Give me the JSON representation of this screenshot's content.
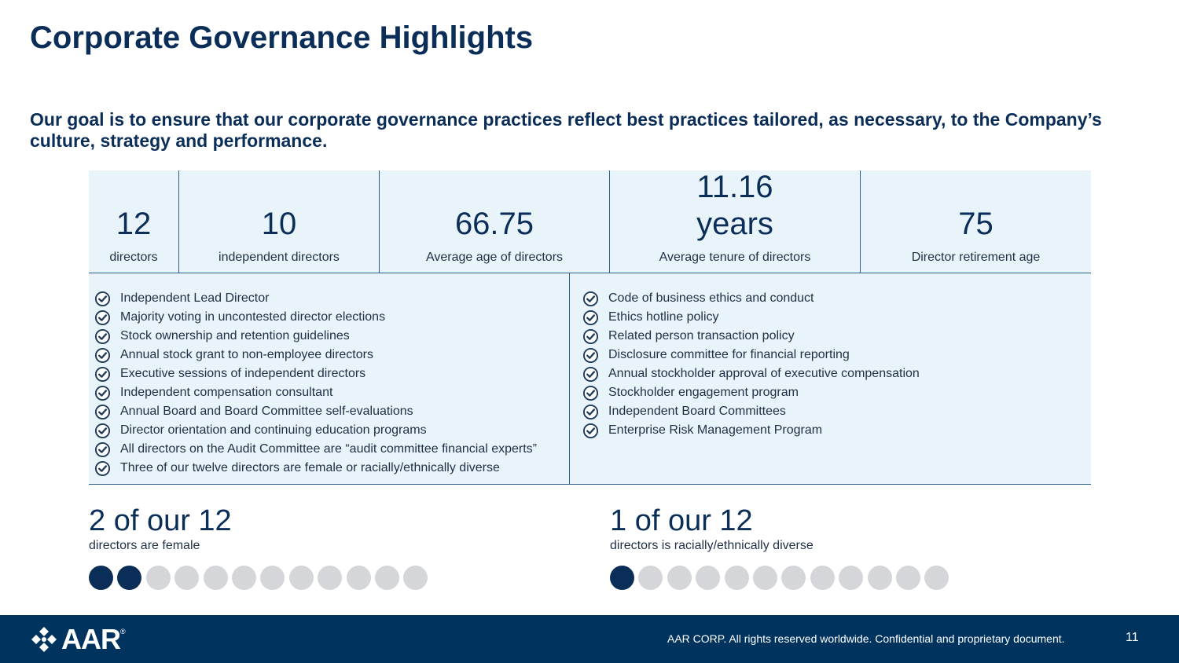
{
  "title": "Corporate Governance Highlights",
  "subtitle": "Our goal is to ensure that our corporate governance practices reflect best practices tailored, as necessary, to the Company’s culture, strategy and performance.",
  "stats": [
    {
      "value": "12",
      "label": "directors"
    },
    {
      "value": "10",
      "label": "independent directors"
    },
    {
      "value": "66.75",
      "label": "Average age of directors"
    },
    {
      "value": "11.16\nyears",
      "label": "Average tenure of directors"
    },
    {
      "value": "75",
      "label": "Director retirement age"
    }
  ],
  "left_practices": [
    "Independent Lead Director",
    "Majority voting in uncontested director elections",
    "Stock ownership and retention guidelines",
    "Annual stock grant to non-employee directors",
    "Executive sessions of independent directors",
    "Independent compensation consultant",
    "Annual Board and Board Committee self-evaluations",
    "Director orientation and continuing education programs",
    "All directors on the Audit Committee are “audit committee financial experts”",
    "Three of our twelve directors are female or racially/ethnically diverse"
  ],
  "right_practices": [
    "Code of business ethics and conduct",
    "Ethics hotline policy",
    "Related person transaction policy",
    "Disclosure committee for financial reporting",
    "Annual stockholder approval of executive compensation",
    "Stockholder engagement program",
    "Independent Board Committees",
    "Enterprise Risk Management Program"
  ],
  "diversity": {
    "female": {
      "headline": "2 of our 12",
      "caption": "directors are female",
      "filled": 2,
      "total": 12
    },
    "diverse": {
      "headline": "1 of our 12",
      "caption": "directors is racially/ethnically diverse",
      "filled": 1,
      "total": 12
    }
  },
  "colors": {
    "navy": "#0b2e59",
    "panel": "#e9f3fa",
    "footer": "#00345f",
    "dot_empty": "#d4d6d9"
  },
  "icons": {
    "check": "check-circle-icon",
    "logo": "aar-logo-icon"
  },
  "footer": {
    "logo_text": "AAR",
    "logo_mark": "®",
    "text": "AAR CORP. All rights reserved worldwide. Confidential and proprietary document.",
    "page_number": "11"
  }
}
